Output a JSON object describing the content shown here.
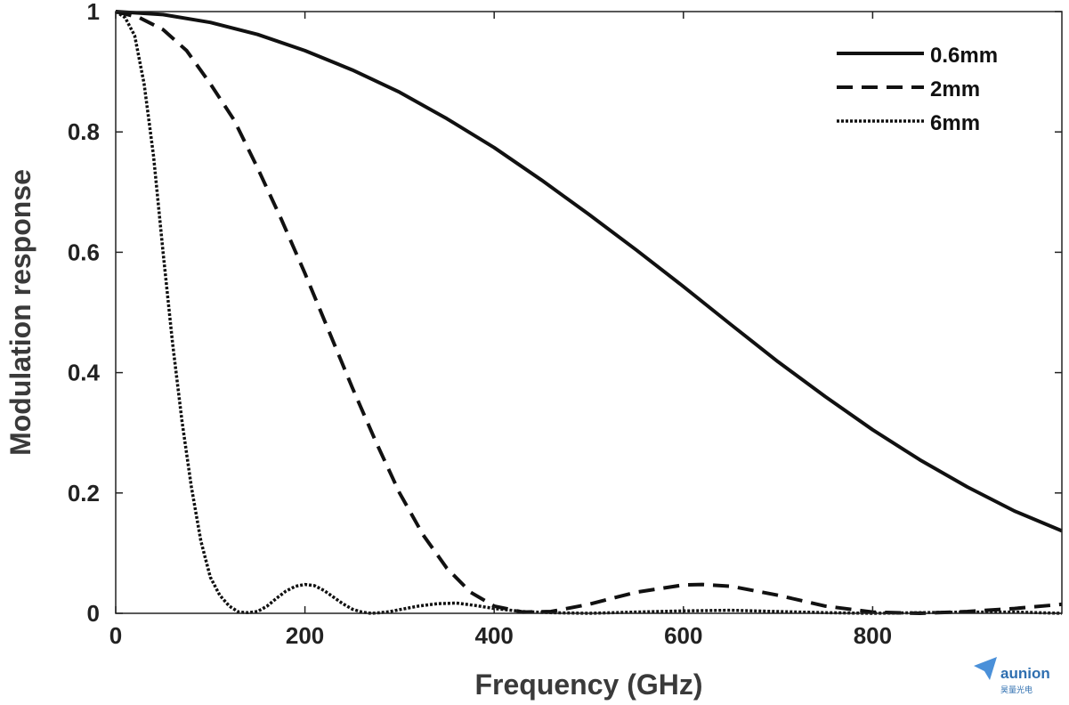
{
  "chart_data": {
    "type": "line",
    "title": "",
    "xlabel": "Frequency (GHz)",
    "ylabel": "Modulation response",
    "xlim": [
      0,
      1000
    ],
    "ylim": [
      0,
      1
    ],
    "xticks": [
      0,
      200,
      400,
      600,
      800
    ],
    "yticks": [
      0,
      0.2,
      0.4,
      0.6,
      0.8,
      1
    ],
    "ytick_labels": [
      "0",
      "0.2",
      "0.4",
      "0.6",
      "0.8",
      "1"
    ],
    "grid": false,
    "legend_position": "top-right",
    "series": [
      {
        "name": "0.6mm",
        "style": "solid",
        "x": [
          0,
          50,
          100,
          150,
          200,
          250,
          300,
          350,
          400,
          450,
          500,
          550,
          600,
          650,
          700,
          750,
          800,
          850,
          900,
          950,
          1000
        ],
        "y": [
          1.0,
          0.995,
          0.982,
          0.962,
          0.935,
          0.903,
          0.866,
          0.822,
          0.774,
          0.72,
          0.663,
          0.604,
          0.543,
          0.48,
          0.418,
          0.36,
          0.305,
          0.255,
          0.21,
          0.17,
          0.137
        ]
      },
      {
        "name": "2mm",
        "style": "dashed",
        "x": [
          0,
          25,
          50,
          75,
          100,
          125,
          150,
          175,
          200,
          225,
          250,
          275,
          300,
          325,
          350,
          375,
          400,
          430,
          460,
          500,
          550,
          600,
          620,
          650,
          700,
          750,
          800,
          850,
          900,
          950,
          1000
        ],
        "y": [
          1.0,
          0.99,
          0.97,
          0.935,
          0.88,
          0.82,
          0.74,
          0.655,
          0.565,
          0.47,
          0.375,
          0.285,
          0.2,
          0.13,
          0.075,
          0.035,
          0.012,
          0.002,
          0.003,
          0.015,
          0.035,
          0.047,
          0.048,
          0.045,
          0.03,
          0.012,
          0.002,
          0.0,
          0.003,
          0.008,
          0.015
        ]
      },
      {
        "name": "6mm",
        "style": "dotted",
        "x": [
          0,
          10,
          20,
          30,
          40,
          50,
          60,
          70,
          80,
          90,
          100,
          110,
          120,
          130,
          140,
          150,
          160,
          170,
          180,
          190,
          200,
          210,
          220,
          230,
          240,
          250,
          260,
          270,
          280,
          290,
          300,
          320,
          340,
          360,
          380,
          400,
          430,
          460,
          500,
          550,
          600,
          650,
          700,
          750,
          800,
          850,
          900,
          950,
          1000
        ],
        "y": [
          1.0,
          0.99,
          0.96,
          0.88,
          0.76,
          0.6,
          0.45,
          0.32,
          0.21,
          0.12,
          0.06,
          0.03,
          0.012,
          0.002,
          0.001,
          0.003,
          0.012,
          0.025,
          0.037,
          0.045,
          0.048,
          0.046,
          0.038,
          0.027,
          0.016,
          0.007,
          0.002,
          0.0,
          0.001,
          0.003,
          0.006,
          0.012,
          0.016,
          0.017,
          0.013,
          0.008,
          0.003,
          0.001,
          0.0,
          0.002,
          0.004,
          0.005,
          0.003,
          0.001,
          0.0,
          0.001,
          0.002,
          0.002,
          0.0
        ]
      }
    ]
  },
  "watermark": {
    "brand": "aunion",
    "subtitle": "昊量光电",
    "color": "#2f6fb0"
  }
}
